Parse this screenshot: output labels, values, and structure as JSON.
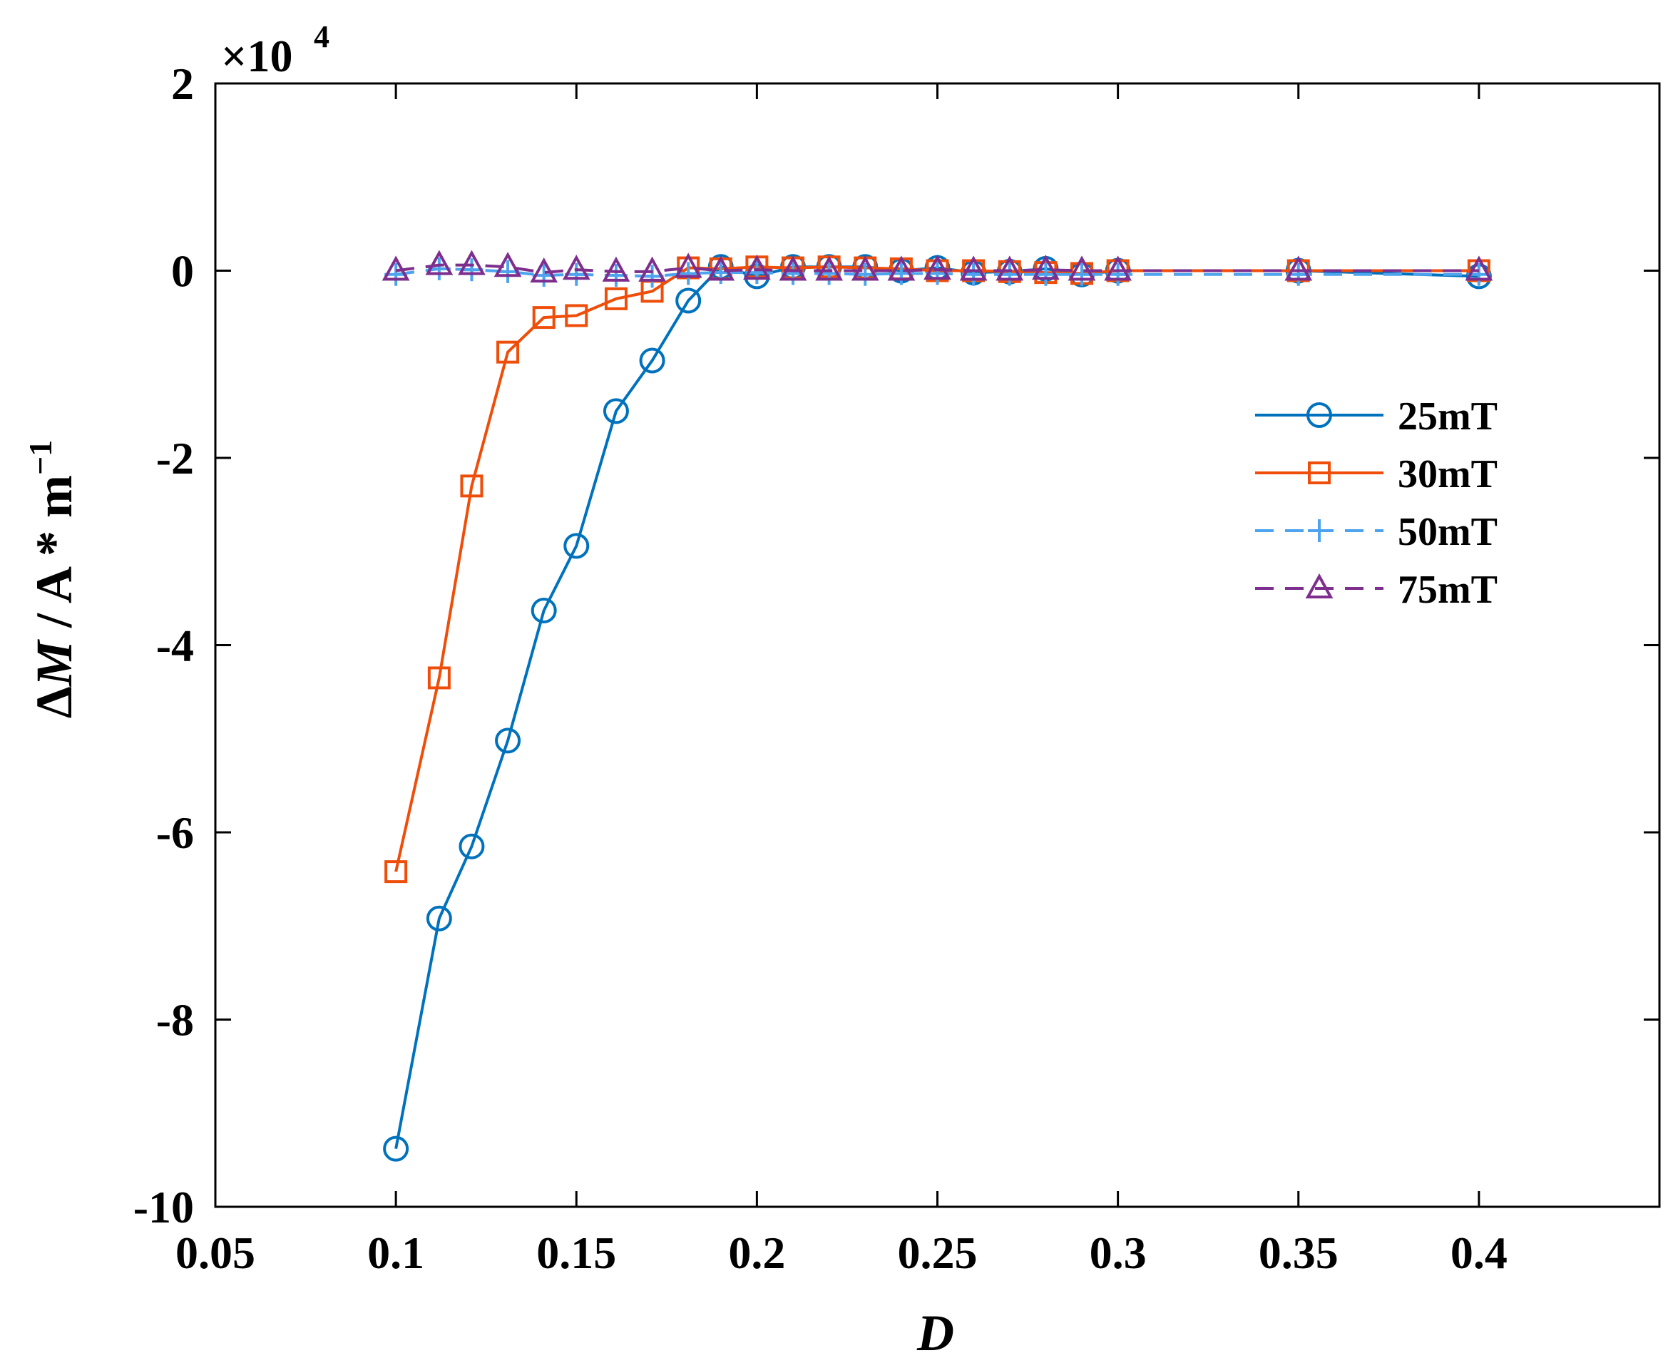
{
  "chart_data": {
    "type": "line",
    "xlabel": "D",
    "ylabel": "ΔM / A * m⁻¹",
    "ylabel_parts": {
      "delta": "Δ",
      "symbol": "M",
      "unit": " / A * m",
      "exponent": "−1"
    },
    "y_multiplier": {
      "base": "×10",
      "exponent": "4"
    },
    "xlim": [
      0.05,
      0.45
    ],
    "ylim": [
      -10,
      2
    ],
    "x_ticks": [
      0.05,
      0.1,
      0.15,
      0.2,
      0.25,
      0.3,
      0.35,
      0.4
    ],
    "x_tick_labels": [
      "0.05",
      "0.1",
      "0.15",
      "0.2",
      "0.25",
      "0.3",
      "0.35",
      "0.4"
    ],
    "y_ticks": [
      -10,
      -8,
      -6,
      -4,
      -2,
      0,
      2
    ],
    "y_tick_labels": [
      "-10",
      "-8",
      "-6",
      "-4",
      "-2",
      "0",
      "2"
    ],
    "legend_position": "right",
    "grid": false,
    "series": [
      {
        "name": "25mT",
        "color": "#0072BD",
        "line_style": "solid",
        "marker": "circle",
        "x": [
          0.1,
          0.112,
          0.121,
          0.131,
          0.141,
          0.15,
          0.161,
          0.171,
          0.181,
          0.19,
          0.2,
          0.21,
          0.22,
          0.23,
          0.24,
          0.25,
          0.26,
          0.27,
          0.28,
          0.29,
          0.3,
          0.35,
          0.4
        ],
        "y": [
          -9.38,
          -6.92,
          -6.15,
          -5.02,
          -3.63,
          -2.94,
          -1.5,
          -0.96,
          -0.32,
          0.04,
          -0.06,
          0.04,
          0.04,
          0.04,
          0.0,
          0.03,
          -0.02,
          -0.01,
          0.02,
          -0.04,
          0.0,
          0.0,
          -0.06
        ]
      },
      {
        "name": "30mT",
        "color": "#EE4E0A",
        "line_style": "solid",
        "marker": "square",
        "x": [
          0.1,
          0.112,
          0.121,
          0.131,
          0.141,
          0.15,
          0.161,
          0.171,
          0.181,
          0.19,
          0.2,
          0.21,
          0.22,
          0.23,
          0.24,
          0.25,
          0.26,
          0.27,
          0.28,
          0.29,
          0.3,
          0.35,
          0.4
        ],
        "y": [
          -6.42,
          -4.35,
          -2.3,
          -0.87,
          -0.5,
          -0.48,
          -0.3,
          -0.22,
          0.03,
          0.02,
          0.04,
          0.03,
          0.04,
          0.03,
          0.02,
          0.0,
          0.0,
          -0.01,
          -0.02,
          -0.03,
          0.0,
          0.0,
          0.0
        ]
      },
      {
        "name": "50mT",
        "color": "#4DA3EE",
        "line_style": "dashed",
        "marker": "plus",
        "x": [
          0.1,
          0.112,
          0.121,
          0.131,
          0.141,
          0.15,
          0.161,
          0.171,
          0.181,
          0.19,
          0.2,
          0.21,
          0.22,
          0.23,
          0.24,
          0.25,
          0.26,
          0.27,
          0.28,
          0.29,
          0.3,
          0.35,
          0.4
        ],
        "y": [
          -0.04,
          0.02,
          0.01,
          -0.01,
          -0.05,
          -0.04,
          -0.05,
          -0.06,
          -0.03,
          -0.02,
          -0.02,
          -0.03,
          -0.03,
          -0.04,
          -0.03,
          -0.03,
          -0.04,
          -0.04,
          -0.04,
          -0.04,
          -0.04,
          -0.04,
          -0.04
        ]
      },
      {
        "name": "75mT",
        "color": "#7E2F8E",
        "line_style": "dashed",
        "marker": "triangle",
        "x": [
          0.1,
          0.112,
          0.121,
          0.131,
          0.141,
          0.15,
          0.161,
          0.171,
          0.181,
          0.19,
          0.2,
          0.21,
          0.22,
          0.23,
          0.24,
          0.25,
          0.26,
          0.27,
          0.28,
          0.29,
          0.3,
          0.35,
          0.4
        ],
        "y": [
          0.0,
          0.06,
          0.06,
          0.04,
          -0.02,
          0.01,
          -0.01,
          -0.01,
          0.03,
          0.0,
          0.01,
          0.0,
          0.0,
          0.0,
          0.0,
          0.01,
          0.0,
          0.0,
          0.01,
          0.0,
          0.0,
          0.0,
          0.0
        ]
      }
    ]
  }
}
